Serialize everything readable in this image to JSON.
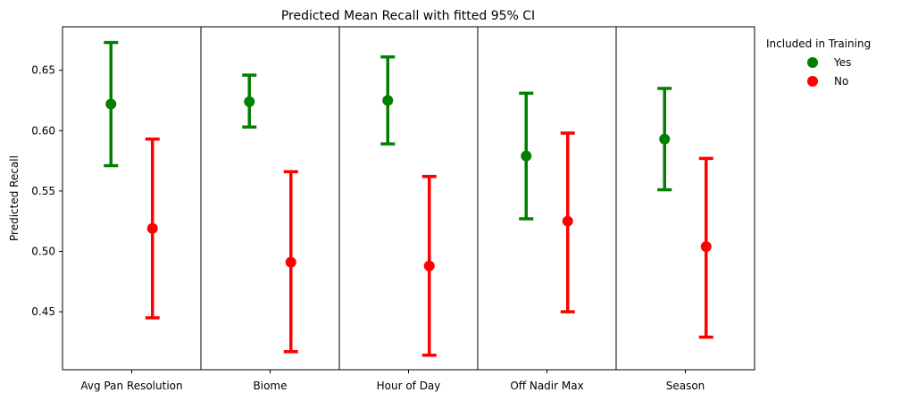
{
  "chart_data": {
    "type": "point-errorbar",
    "title": "Predicted Mean Recall with fitted 95% CI",
    "xlabel": "",
    "ylabel": "Predicted Recall",
    "ylim": [
      0.402,
      0.686
    ],
    "yticks": [
      0.45,
      0.5,
      0.55,
      0.6,
      0.65
    ],
    "ytick_labels": [
      "0.45",
      "0.50",
      "0.55",
      "0.60",
      "0.65"
    ],
    "categories": [
      "Avg Pan Resolution",
      "Biome",
      "Hour of Day",
      "Off Nadir Max",
      "Season"
    ],
    "legend": {
      "title": "Included in Training",
      "placement": "outside-top-right",
      "entries": [
        "Yes",
        "No"
      ]
    },
    "series": [
      {
        "name": "Yes",
        "color": "#008000",
        "mean": [
          0.622,
          0.624,
          0.625,
          0.579,
          0.593
        ],
        "lower": [
          0.571,
          0.603,
          0.589,
          0.527,
          0.551
        ],
        "upper": [
          0.673,
          0.646,
          0.661,
          0.631,
          0.635
        ]
      },
      {
        "name": "No",
        "color": "#ff0000",
        "mean": [
          0.519,
          0.491,
          0.488,
          0.525,
          0.504
        ],
        "lower": [
          0.445,
          0.417,
          0.414,
          0.45,
          0.429
        ],
        "upper": [
          0.593,
          0.566,
          0.562,
          0.598,
          0.577
        ]
      }
    ],
    "grid": false
  }
}
